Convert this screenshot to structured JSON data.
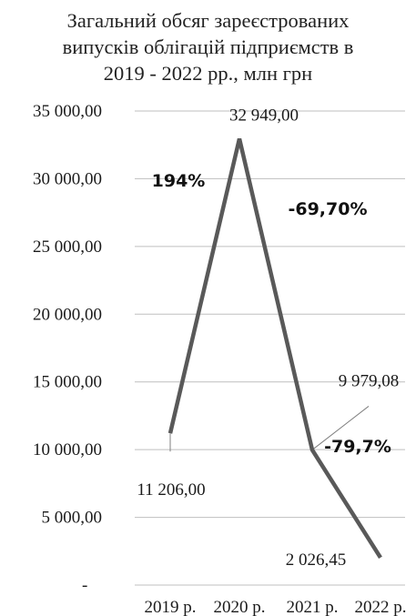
{
  "chart_data": {
    "type": "line",
    "title_lines": [
      "Загальний обсяг зареєстрованих",
      "випусків облігацій підприємств в",
      "2019 - 2022 рр., млн грн"
    ],
    "categories": [
      "2019 р.",
      "2020 р.",
      "2021 р.",
      "2022 р."
    ],
    "series": [
      {
        "values": [
          11206.0,
          32949.0,
          9979.08,
          2026.45
        ],
        "value_labels": [
          "11 206,00",
          "32 949,00",
          "9 979,08",
          "2 026,45"
        ],
        "color": "#595959"
      }
    ],
    "y_ticks": [
      {
        "value": 0,
        "label": "-"
      },
      {
        "value": 5000,
        "label": "5 000,00"
      },
      {
        "value": 10000,
        "label": "10 000,00"
      },
      {
        "value": 15000,
        "label": "15 000,00"
      },
      {
        "value": 20000,
        "label": "20 000,00"
      },
      {
        "value": 25000,
        "label": "25 000,00"
      },
      {
        "value": 30000,
        "label": "30 000,00"
      },
      {
        "value": 35000,
        "label": "35 000,00"
      }
    ],
    "ylim": [
      0,
      35000
    ],
    "grid": "horizontal",
    "legend": "none",
    "annotations": [
      "194%",
      "-69,70%",
      "-79,7%"
    ],
    "gridline_color": "#bfbfbf"
  }
}
